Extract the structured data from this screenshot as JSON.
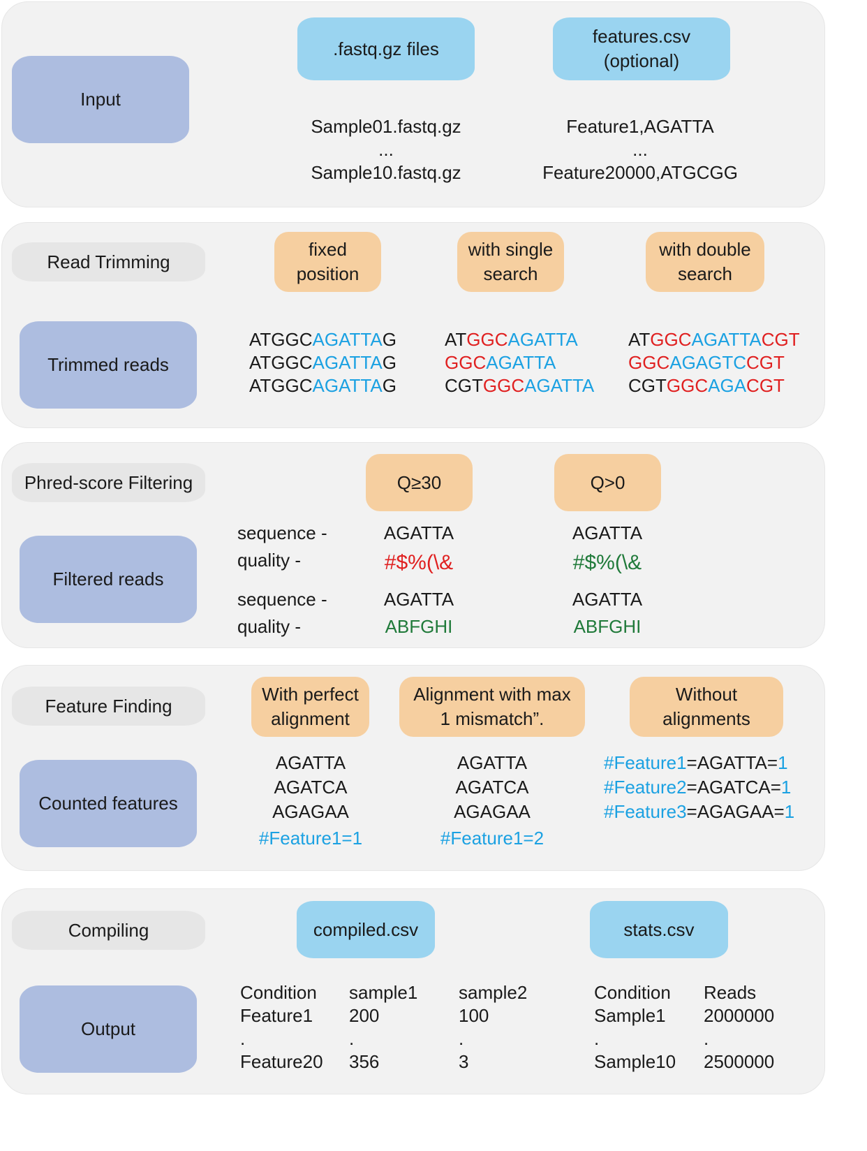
{
  "input": {
    "label": "Input",
    "fastq_box": ".fastq.gz files",
    "features_box": [
      "features.csv",
      "(optional)"
    ],
    "samples": [
      "Sample01.fastq.gz",
      "...",
      "Sample10.fastq.gz"
    ],
    "features": [
      "Feature1,AGATTA",
      "...",
      "Feature20000,ATGCGG"
    ]
  },
  "trimming": {
    "label": "Read Trimming",
    "methods": [
      [
        "fixed",
        "position"
      ],
      [
        "with single",
        "search"
      ],
      [
        "with double",
        "search"
      ]
    ],
    "result_label": "Trimmed reads",
    "fixed_reads": [
      [
        {
          "t": "ATGGC",
          "c": "k"
        },
        {
          "t": "AGATTA",
          "c": "b"
        },
        {
          "t": "G",
          "c": "k"
        }
      ],
      [
        {
          "t": "ATGGC",
          "c": "k"
        },
        {
          "t": "AGATTA",
          "c": "b"
        },
        {
          "t": "G",
          "c": "k"
        }
      ],
      [
        {
          "t": "ATGGC",
          "c": "k"
        },
        {
          "t": "AGATTA",
          "c": "b"
        },
        {
          "t": "G",
          "c": "k"
        }
      ]
    ],
    "single_reads": [
      [
        {
          "t": "AT",
          "c": "k"
        },
        {
          "t": "GGC",
          "c": "r"
        },
        {
          "t": "AGATTA",
          "c": "b"
        }
      ],
      [
        {
          "t": "GGC",
          "c": "r"
        },
        {
          "t": "AGATTA",
          "c": "b"
        }
      ],
      [
        {
          "t": "CGT",
          "c": "k"
        },
        {
          "t": "GGC",
          "c": "r"
        },
        {
          "t": "AGATTA",
          "c": "b"
        }
      ]
    ],
    "double_reads": [
      [
        {
          "t": "AT",
          "c": "k"
        },
        {
          "t": "GGC",
          "c": "r"
        },
        {
          "t": "AGATTA",
          "c": "b"
        },
        {
          "t": "CGT",
          "c": "r"
        }
      ],
      [
        {
          "t": "GGC",
          "c": "r"
        },
        {
          "t": "AGAGTC",
          "c": "b"
        },
        {
          "t": "CGT",
          "c": "r"
        }
      ],
      [
        {
          "t": "CGT",
          "c": "k"
        },
        {
          "t": "GGC",
          "c": "r"
        },
        {
          "t": "AGA",
          "c": "b"
        },
        {
          "t": "CGT",
          "c": "r"
        }
      ]
    ]
  },
  "filtering": {
    "label": "Phred-score Filtering",
    "thresholds": [
      "Q≥30",
      "Q>0"
    ],
    "result_label": "Filtered reads",
    "seq_label": "sequence -",
    "qual_label": "quality -",
    "reads": [
      {
        "seq": "AGATTA",
        "qual": "#$%(\\&",
        "col1": "r",
        "col2": "g"
      },
      {
        "seq": "AGATTA",
        "qual": "ABFGHI",
        "col1": "g",
        "col2": "g"
      }
    ],
    "colors": {
      "r": "#e02020",
      "g": "#207a3a"
    }
  },
  "finding": {
    "label": "Feature Finding",
    "methods": [
      [
        "With perfect",
        "alignment"
      ],
      [
        "Alignment with max",
        "1 mismatch”."
      ],
      [
        "Without",
        "alignments"
      ]
    ],
    "result_label": "Counted features",
    "seqs": [
      "AGATTA",
      "AGATCA",
      "AGAGAA"
    ],
    "perfect_count": "#Feature1=1",
    "mismatch_count": "#Feature1=2",
    "noalign": [
      {
        "name": "#Feature1",
        "rest": "=AGATTA=",
        "n": "1"
      },
      {
        "name": "#Feature2",
        "rest": "=AGATCA=",
        "n": "1"
      },
      {
        "name": "#Feature3",
        "rest": "=AGAGAA=",
        "n": "1"
      }
    ]
  },
  "output": {
    "label": "Compiling",
    "result_label": "Output",
    "compiled_box": "compiled.csv",
    "stats_box": "stats.csv",
    "compiled": [
      [
        "Condition",
        "sample1",
        "sample2"
      ],
      [
        "Feature1",
        "200",
        "100"
      ],
      [
        ".",
        ".",
        "."
      ],
      [
        "Feature20",
        "356",
        "3"
      ]
    ],
    "stats": [
      [
        "Condition",
        "Reads"
      ],
      [
        "Sample1",
        "2000000"
      ],
      [
        ".",
        "."
      ],
      [
        "Sample10",
        "2500000"
      ]
    ]
  },
  "palette": {
    "k": "#1a1a1a",
    "b": "#1ba1e2",
    "r": "#e02020",
    "g": "#207a3a"
  }
}
